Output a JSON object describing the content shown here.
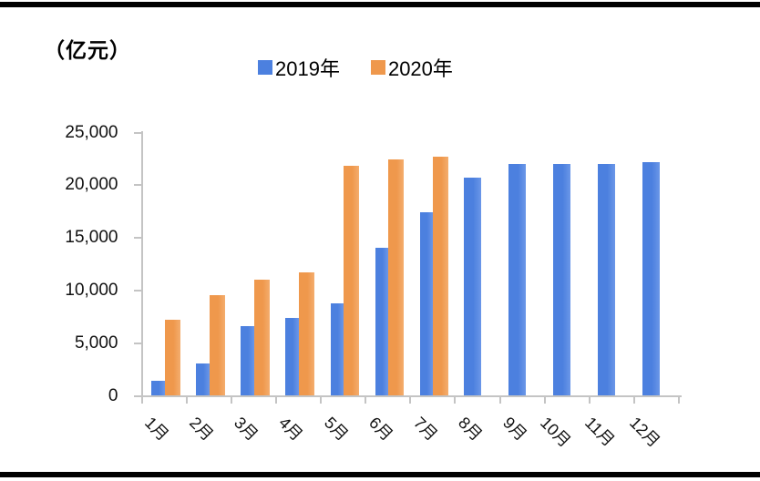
{
  "unit_label": "（亿元）",
  "chart_data": {
    "type": "bar",
    "title": "",
    "unit_label": "（亿元）",
    "categories": [
      "1月",
      "2月",
      "3月",
      "4月",
      "5月",
      "6月",
      "7月",
      "8月",
      "9月",
      "10月",
      "11月",
      "12月"
    ],
    "series": [
      {
        "name": "2019年",
        "color": "#4C80DF",
        "values": [
          1400,
          3100,
          6600,
          7400,
          8800,
          14100,
          17400,
          20700,
          22000,
          22000,
          22000,
          22200
        ]
      },
      {
        "name": "2020年",
        "color": "#EF984C",
        "values": [
          7200,
          9600,
          11000,
          11700,
          21900,
          22500,
          22700,
          null,
          null,
          null,
          null,
          null
        ]
      }
    ],
    "ylim": [
      0,
      25000
    ],
    "yticks": [
      0,
      5000,
      10000,
      15000,
      20000,
      25000
    ],
    "ytick_labels": [
      "0",
      "5,000",
      "10,000",
      "15,000",
      "20,000",
      "25,000"
    ],
    "grid": false,
    "legend_position": "top-center",
    "axis_color": "#c4c4c4",
    "text_color": "#000000"
  }
}
